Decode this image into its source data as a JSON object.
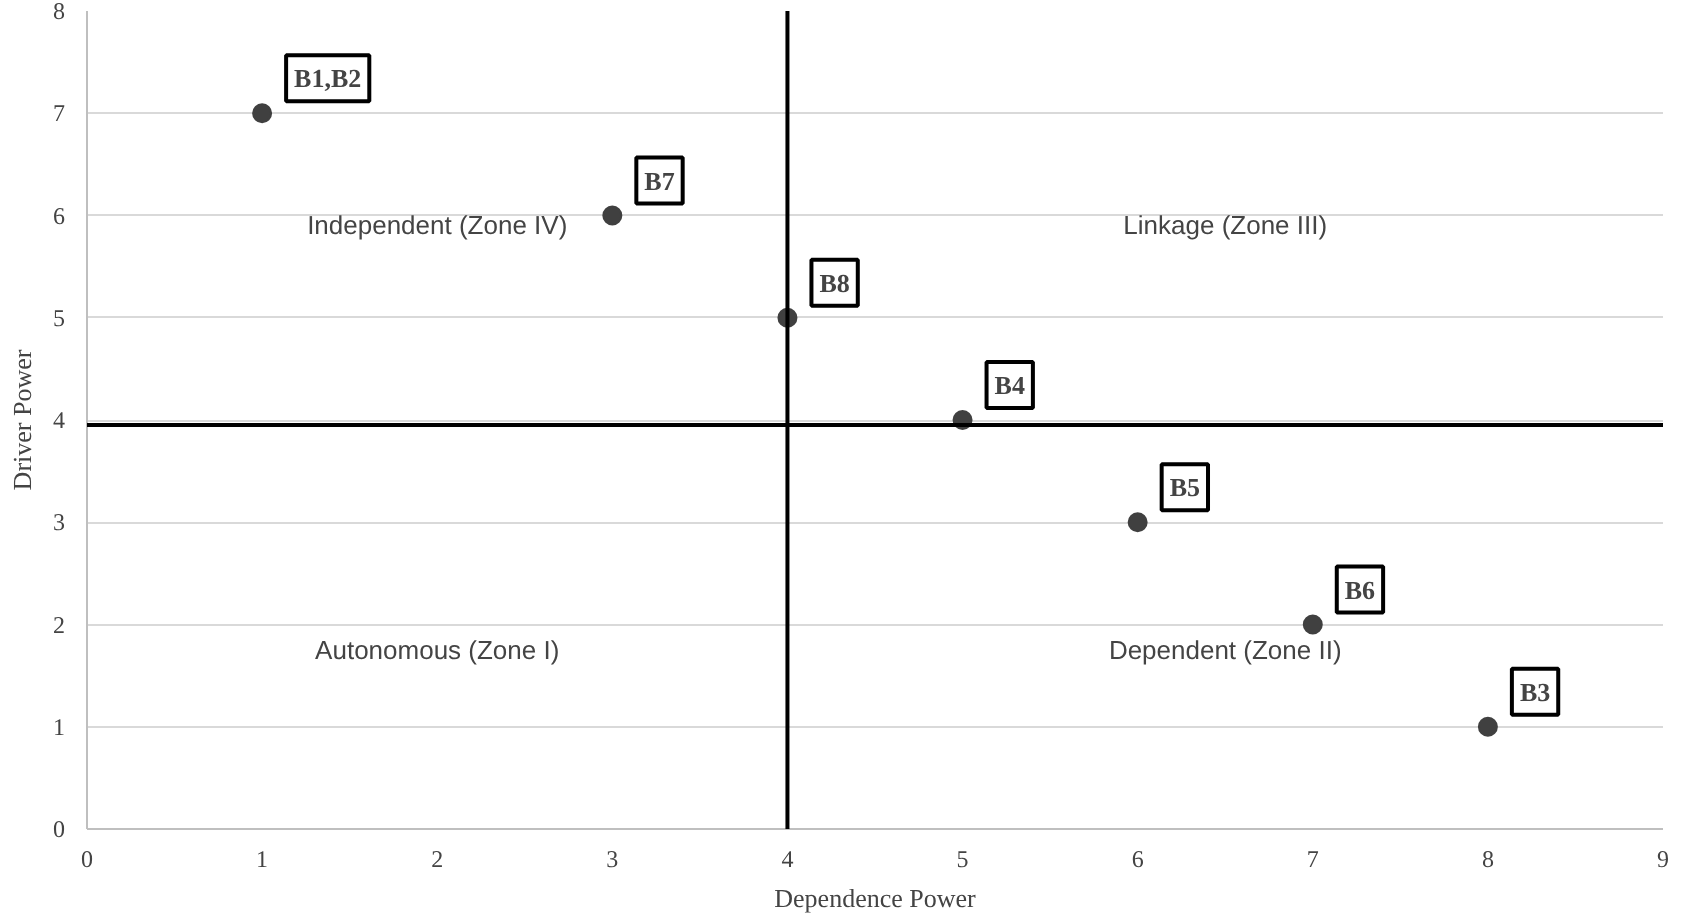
{
  "chart_data": {
    "type": "scatter",
    "xlabel": "Dependence Power",
    "ylabel": "Driver Power",
    "x": [
      1,
      3,
      4,
      5,
      6,
      7,
      8
    ],
    "series": [
      {
        "color": "#404040",
        "values": [
          7,
          6,
          5,
          4,
          3,
          2,
          1
        ]
      }
    ],
    "xlim": [
      0,
      9
    ],
    "ylim": [
      0,
      8
    ],
    "xticks": [
      0,
      1,
      2,
      3,
      4,
      5,
      6,
      7,
      8,
      9
    ],
    "yticks": [
      0,
      1,
      2,
      3,
      4,
      5,
      6,
      7,
      8
    ],
    "grid": "y",
    "marker": "circle",
    "ref_lines": [
      {
        "axis": "x",
        "value": 4,
        "color": "#000000"
      },
      {
        "axis": "y",
        "value": 3.95,
        "color": "#000000"
      }
    ],
    "annotations": [
      {
        "text": "B1,B2",
        "x": 1,
        "y": 7
      },
      {
        "text": "B7",
        "x": 3,
        "y": 6
      },
      {
        "text": "B8",
        "x": 4,
        "y": 5
      },
      {
        "text": "B4",
        "x": 5,
        "y": 4
      },
      {
        "text": "B5",
        "x": 6,
        "y": 3
      },
      {
        "text": "B6",
        "x": 7,
        "y": 2
      },
      {
        "text": "B3",
        "x": 8,
        "y": 1
      },
      "Independent (Zone IV)",
      "Linkage (Zone III)",
      "Autonomous (Zone I)",
      "Dependent (Zone II)"
    ]
  }
}
